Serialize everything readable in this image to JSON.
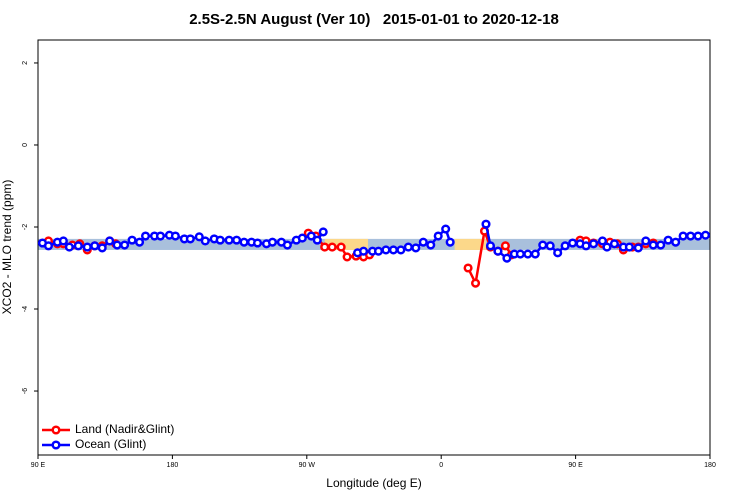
{
  "chart_data": {
    "type": "line",
    "title": "2.5S-2.5N August (Ver 10)   2015-01-01 to 2020-12-18",
    "xlabel": "Longitude (deg E)",
    "ylabel": "XCO2 - MLO trend (ppm)",
    "xlim": [
      90,
      540
    ],
    "ylim": [
      -7.56,
      2.56
    ],
    "xticks": [
      {
        "value": 90,
        "label": "90 E"
      },
      180,
      {
        "value": 270,
        "label": "90 W"
      },
      {
        "value": 360,
        "label": "0"
      },
      {
        "value": 450,
        "label": "90 E"
      },
      {
        "value": 540,
        "label": "180"
      }
    ],
    "yticks": [
      2,
      0,
      -2,
      -4,
      -6
    ],
    "grid": false,
    "legend": "bottomleft",
    "bands": [
      {
        "xlim": [
          90,
          540
        ],
        "ylim": [
          -2.56,
          -2.29
        ],
        "color": "#a9c0dc"
      },
      {
        "xlim": [
          282,
          311
        ],
        "ylim": [
          -2.56,
          -2.29
        ],
        "color": "#fcd88a"
      },
      {
        "xlim": [
          369,
          390
        ],
        "ylim": [
          -2.56,
          -2.29
        ],
        "color": "#fcd88a"
      }
    ],
    "series": [
      {
        "name": "Land (Nadir&Glint)",
        "color": "#ff0000",
        "x": [
          97,
          103,
          107,
          113,
          118,
          123,
          128,
          133,
          138,
          142,
          null,
          271,
          276,
          282,
          287,
          293,
          297,
          303,
          308,
          312,
          null,
          378,
          383,
          389,
          393,
          398,
          403,
          407,
          null,
          453,
          457,
          462,
          468,
          473,
          478,
          482,
          488,
          492,
          497,
          502
        ],
        "values": [
          -2.34,
          -2.41,
          -2.41,
          -2.44,
          -2.41,
          -2.56,
          -2.46,
          -2.46,
          -2.34,
          -2.41,
          null,
          -2.15,
          -2.22,
          -2.49,
          -2.49,
          -2.49,
          -2.73,
          -2.71,
          -2.73,
          -2.68,
          null,
          -3.0,
          -3.37,
          -2.1,
          -2.49,
          -2.59,
          -2.46,
          -2.68,
          null,
          -2.32,
          -2.34,
          -2.39,
          -2.41,
          -2.37,
          -2.41,
          -2.56,
          -2.49,
          -2.49,
          -2.41,
          -2.39
        ]
      },
      {
        "name": "Ocean (Glint)",
        "color": "#0000ff",
        "x": [
          93,
          97,
          103,
          107,
          111,
          117,
          123,
          128,
          133,
          138,
          143,
          148,
          153,
          158,
          162,
          168,
          172,
          178,
          182,
          188,
          192,
          198,
          202,
          208,
          212,
          218,
          223,
          228,
          233,
          237,
          243,
          247,
          253,
          257,
          263,
          267,
          273,
          277,
          281,
          null,
          304,
          308,
          314,
          318,
          323,
          328,
          333,
          338,
          343,
          348,
          353,
          358,
          363,
          366,
          null,
          390,
          393,
          398,
          404,
          409,
          413,
          418,
          423,
          428,
          433,
          438,
          443,
          448,
          453,
          457,
          462,
          468,
          471,
          476,
          482,
          486,
          492,
          497,
          502,
          507,
          512,
          517,
          522,
          527,
          532,
          537
        ],
        "values": [
          -2.39,
          -2.46,
          -2.37,
          -2.34,
          -2.49,
          -2.46,
          -2.49,
          -2.46,
          -2.51,
          -2.34,
          -2.44,
          -2.44,
          -2.32,
          -2.37,
          -2.22,
          -2.22,
          -2.22,
          -2.2,
          -2.22,
          -2.29,
          -2.29,
          -2.24,
          -2.34,
          -2.29,
          -2.32,
          -2.32,
          -2.32,
          -2.37,
          -2.37,
          -2.39,
          -2.41,
          -2.37,
          -2.37,
          -2.44,
          -2.32,
          -2.27,
          -2.22,
          -2.32,
          -2.12,
          null,
          -2.63,
          -2.59,
          -2.59,
          -2.59,
          -2.56,
          -2.56,
          -2.56,
          -2.49,
          -2.51,
          -2.37,
          -2.44,
          -2.22,
          -2.05,
          -2.37,
          null,
          -1.93,
          -2.46,
          -2.59,
          -2.76,
          -2.66,
          -2.66,
          -2.66,
          -2.66,
          -2.44,
          -2.46,
          -2.63,
          -2.46,
          -2.39,
          -2.41,
          -2.46,
          -2.41,
          -2.34,
          -2.49,
          -2.41,
          -2.49,
          -2.49,
          -2.51,
          -2.34,
          -2.44,
          -2.44,
          -2.32,
          -2.37,
          -2.22,
          -2.22,
          -2.22,
          -2.2
        ]
      }
    ]
  }
}
